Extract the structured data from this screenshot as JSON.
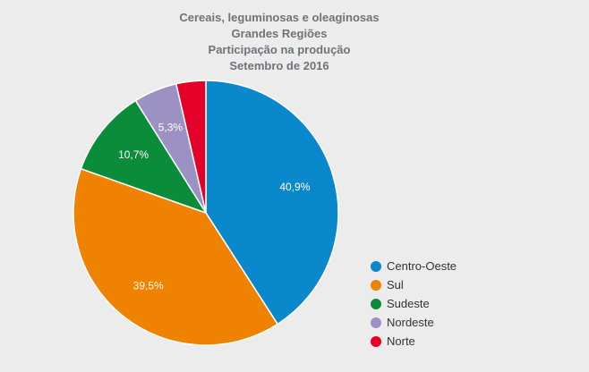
{
  "chart_data": {
    "type": "pie",
    "title_lines": [
      "Cereais, leguminosas e oleaginosas",
      "Grandes Regiões",
      "Participação na produção",
      "Setembro de 2016"
    ],
    "slices": [
      {
        "name": "Centro-Oeste",
        "value": 40.9,
        "label": "40,9%",
        "color": "#0a88cc"
      },
      {
        "name": "Sul",
        "value": 39.5,
        "label": "39,5%",
        "color": "#ef8200"
      },
      {
        "name": "Sudeste",
        "value": 10.7,
        "label": "10,7%",
        "color": "#0a8c3a"
      },
      {
        "name": "Nordeste",
        "value": 5.3,
        "label": "5,3%",
        "color": "#9b91c2"
      },
      {
        "name": "Norte",
        "value": 3.6,
        "label": "",
        "color": "#e5002a"
      }
    ],
    "legend_position": "right-bottom"
  }
}
